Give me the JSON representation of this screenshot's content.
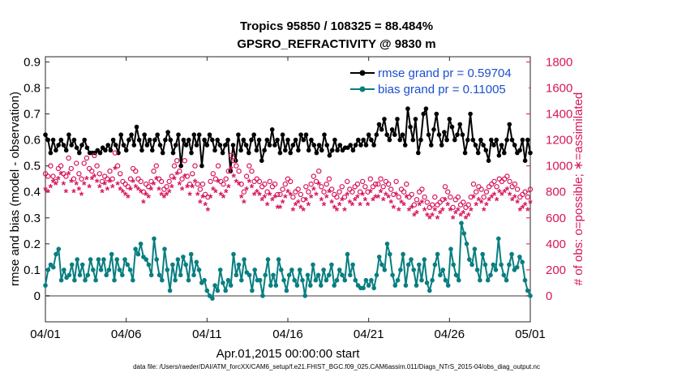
{
  "chart_data": {
    "type": "line",
    "title": "Tropics 95850 / 108325 = 88.484%",
    "subtitle": "GPSRO_REFRACTIVITY @ 9830 m",
    "xlabel": "Apr.01,2015 00:00:00 start",
    "ylabel_left": "rmse and bias (model - observation)",
    "ylabel_right": "# of obs: o=possible; ∗=assimilated",
    "x_tick_labels": [
      "04/01",
      "04/06",
      "04/11",
      "04/16",
      "04/21",
      "04/26",
      "05/01"
    ],
    "x_ticks": [
      0,
      5,
      10,
      15,
      20,
      25,
      30
    ],
    "xlim": [
      0,
      30
    ],
    "ylim_left": [
      -0.1,
      0.92
    ],
    "ylim_right": [
      -200,
      1840
    ],
    "y_ticks_left": [
      "0",
      "0.1",
      "0.2",
      "0.3",
      "0.4",
      "0.5",
      "0.6",
      "0.7",
      "0.8",
      "0.9"
    ],
    "y_ticks_right": [
      "0",
      "200",
      "400",
      "600",
      "800",
      "1000",
      "1200",
      "1400",
      "1600",
      "1800"
    ],
    "legend": {
      "location": "top-right",
      "rmse_label": "rmse grand pr = 0.59704",
      "bias_label": "bias grand pr = 0.11005"
    },
    "series": [
      {
        "name": "rmse",
        "axis": "left",
        "color": "#000000",
        "values": [
          0.62,
          0.6,
          0.55,
          0.6,
          0.56,
          0.58,
          0.6,
          0.58,
          0.56,
          0.62,
          0.58,
          0.6,
          0.57,
          0.55,
          0.58,
          0.6,
          0.57,
          0.55,
          0.55,
          0.55,
          0.56,
          0.55,
          0.57,
          0.56,
          0.58,
          0.56,
          0.6,
          0.58,
          0.55,
          0.62,
          0.58,
          0.56,
          0.6,
          0.62,
          0.58,
          0.65,
          0.6,
          0.56,
          0.62,
          0.58,
          0.6,
          0.56,
          0.6,
          0.62,
          0.58,
          0.55,
          0.6,
          0.63,
          0.6,
          0.55,
          0.58,
          0.62,
          0.5,
          0.6,
          0.58,
          0.6,
          0.55,
          0.62,
          0.58,
          0.62,
          0.5,
          0.6,
          0.58,
          0.62,
          0.6,
          0.56,
          0.6,
          0.58,
          0.55,
          0.58,
          0.6,
          0.48,
          0.58,
          0.52,
          0.62,
          0.56,
          0.6,
          0.58,
          0.55,
          0.6,
          0.62,
          0.56,
          0.6,
          0.52,
          0.56,
          0.6,
          0.58,
          0.64,
          0.58,
          0.6,
          0.55,
          0.62,
          0.56,
          0.6,
          0.55,
          0.58,
          0.6,
          0.56,
          0.62,
          0.6,
          0.62,
          0.56,
          0.6,
          0.58,
          0.55,
          0.58,
          0.56,
          0.62,
          0.58,
          0.54,
          0.56,
          0.6,
          0.56,
          0.58,
          0.56,
          0.57,
          0.57,
          0.58,
          0.56,
          0.58,
          0.6,
          0.58,
          0.6,
          0.58,
          0.62,
          0.6,
          0.58,
          0.62,
          0.66,
          0.64,
          0.68,
          0.62,
          0.6,
          0.64,
          0.62,
          0.68,
          0.6,
          0.62,
          0.58,
          0.72,
          0.65,
          0.6,
          0.68,
          0.55,
          0.6,
          0.7,
          0.72,
          0.62,
          0.58,
          0.64,
          0.7,
          0.62,
          0.58,
          0.63,
          0.6,
          0.68,
          0.65,
          0.6,
          0.62,
          0.66,
          0.62,
          0.55,
          0.6,
          0.7,
          0.6,
          0.58,
          0.55,
          0.6,
          0.58,
          0.56,
          0.52,
          0.6,
          0.58,
          0.6,
          0.54,
          0.58,
          0.55,
          0.6,
          0.66,
          0.6,
          0.58,
          0.55,
          0.56,
          0.6,
          0.52,
          0.6,
          0.55
        ]
      },
      {
        "name": "bias",
        "axis": "left",
        "color": "#087e80",
        "values": [
          0.04,
          0.1,
          0.12,
          0.11,
          0.16,
          0.18,
          0.06,
          0.1,
          0.07,
          0.08,
          0.12,
          0.06,
          0.14,
          0.08,
          0.12,
          0.06,
          0.08,
          0.14,
          0.1,
          0.06,
          0.14,
          0.1,
          0.14,
          0.08,
          0.1,
          0.16,
          0.06,
          0.14,
          0.1,
          0.08,
          0.14,
          0.12,
          0.1,
          0.06,
          0.18,
          0.16,
          0.2,
          0.15,
          0.14,
          0.12,
          0.08,
          0.22,
          0.14,
          0.08,
          0.06,
          0.18,
          0.1,
          0.02,
          0.12,
          0.06,
          0.14,
          0.08,
          0.15,
          0.12,
          0.06,
          0.16,
          0.08,
          0.13,
          0.1,
          0.05,
          0.06,
          0.02,
          0.0,
          -0.01,
          0.04,
          0.02,
          0.1,
          0.05,
          0.02,
          0.06,
          0.04,
          0.16,
          0.08,
          0.12,
          0.06,
          0.14,
          0.09,
          0.08,
          0.02,
          0.1,
          0.06,
          0.06,
          0.0,
          0.08,
          0.14,
          0.04,
          0.08,
          0.04,
          0.14,
          0.1,
          0.06,
          0.02,
          0.08,
          0.1,
          0.06,
          0.04,
          0.1,
          0.06,
          0.0,
          0.08,
          0.04,
          0.12,
          0.06,
          0.08,
          0.04,
          0.1,
          0.06,
          0.08,
          0.12,
          0.04,
          0.06,
          0.1,
          0.08,
          0.06,
          0.16,
          0.08,
          0.12,
          0.06,
          0.04,
          0.03,
          0.03,
          0.06,
          0.04,
          0.06,
          0.03,
          0.08,
          0.15,
          0.12,
          0.1,
          0.2,
          0.16,
          0.08,
          0.04,
          0.06,
          0.1,
          0.16,
          0.04,
          0.12,
          0.14,
          0.1,
          0.04,
          0.12,
          0.06,
          0.14,
          0.05,
          0.02,
          0.06,
          0.12,
          0.16,
          0.08,
          0.1,
          0.06,
          0.04,
          0.18,
          0.12,
          0.08,
          0.06,
          0.28,
          0.24,
          0.2,
          0.14,
          0.12,
          0.18,
          0.1,
          0.06,
          0.16,
          0.12,
          0.06,
          0.08,
          0.12,
          0.1,
          0.22,
          0.12,
          0.08,
          0.06,
          0.12,
          0.16,
          0.1,
          0.11,
          0.15,
          0.13,
          0.06,
          0.02,
          0.0
        ]
      },
      {
        "name": "obs possible",
        "axis": "right",
        "color": "#d6155c",
        "values": [
          940,
          920,
          1000,
          920,
          880,
          980,
          1000,
          940,
          920,
          1060,
          980,
          900,
          1020,
          940,
          900,
          1020,
          1060,
          980,
          960,
          1080,
          1000,
          940,
          880,
          920,
          900,
          960,
          900,
          1100,
          1000,
          940,
          880,
          860,
          840,
          900,
          980,
          960,
          900,
          880,
          800,
          860,
          840,
          880,
          960,
          1000,
          900,
          880,
          820,
          840,
          880,
          920,
          1000,
          1040,
          960,
          900,
          1040,
          920,
          860,
          940,
          1000,
          860,
          820,
          860,
          780,
          760,
          880,
          940,
          900,
          1000,
          880,
          860,
          900,
          960,
          1080,
          1040,
          1000,
          960,
          860,
          800,
          920,
          1000,
          960,
          880,
          900,
          880,
          840,
          860,
          800,
          880,
          840,
          860,
          780,
          780,
          820,
          860,
          900,
          880,
          760,
          800,
          820,
          780,
          740,
          840,
          800,
          860,
          920,
          880,
          960,
          840,
          800,
          860,
          900,
          820,
          780,
          760,
          800,
          840,
          760,
          880,
          820,
          800,
          840,
          860,
          800,
          880,
          840,
          800,
          900,
          840,
          860,
          860,
          900,
          840,
          880,
          860,
          820,
          780,
          880,
          760,
          820,
          800,
          860,
          760,
          780,
          700,
          740,
          800,
          820,
          760,
          720,
          680,
          700,
          760,
          700,
          720,
          740,
          840,
          800,
          760,
          680,
          740,
          760,
          700,
          720,
          680,
          700,
          760,
          860,
          800,
          840,
          820,
          760,
          800,
          840,
          860,
          880,
          840,
          900,
          880,
          900,
          920,
          880,
          840,
          860,
          820,
          760,
          780,
          800,
          760,
          820
        ]
      },
      {
        "name": "obs assimilated",
        "axis": "right",
        "color": "#d6155c",
        "values": [
          820,
          800,
          840,
          880,
          860,
          900,
          940,
          860,
          800,
          940,
          880,
          800,
          860,
          820,
          780,
          860,
          900,
          840,
          900,
          920,
          880,
          840,
          800,
          860,
          820,
          880,
          840,
          980,
          860,
          820,
          800,
          780,
          760,
          820,
          880,
          840,
          820,
          800,
          720,
          780,
          760,
          820,
          860,
          900,
          820,
          780,
          760,
          780,
          800,
          840,
          900,
          940,
          860,
          820,
          920,
          840,
          780,
          840,
          880,
          780,
          720,
          760,
          700,
          660,
          760,
          820,
          800,
          880,
          780,
          760,
          800,
          840,
          980,
          920,
          880,
          860,
          760,
          720,
          820,
          880,
          840,
          780,
          800,
          780,
          740,
          760,
          700,
          780,
          740,
          760,
          680,
          680,
          720,
          760,
          800,
          780,
          660,
          700,
          720,
          680,
          660,
          740,
          700,
          760,
          820,
          780,
          860,
          740,
          700,
          760,
          800,
          720,
          680,
          660,
          700,
          740,
          660,
          780,
          720,
          700,
          740,
          760,
          700,
          780,
          740,
          700,
          800,
          740,
          760,
          760,
          800,
          740,
          780,
          760,
          720,
          680,
          780,
          660,
          720,
          700,
          760,
          660,
          680,
          620,
          640,
          700,
          720,
          660,
          620,
          600,
          620,
          660,
          600,
          640,
          660,
          740,
          700,
          660,
          600,
          640,
          660,
          620,
          640,
          600,
          620,
          660,
          760,
          700,
          740,
          720,
          660,
          700,
          740,
          760,
          780,
          740,
          800,
          780,
          800,
          820,
          780,
          740,
          760,
          720,
          660,
          680,
          700,
          660,
          720
        ]
      }
    ]
  },
  "footer": "data file: /Users/raeder/DAI/ATM_forcXX/CAM6_setup/f.e21.FHIST_BGC.f09_025.CAM6assim.011/Diags_NTrS_2015-04/obs_diag_output.nc"
}
